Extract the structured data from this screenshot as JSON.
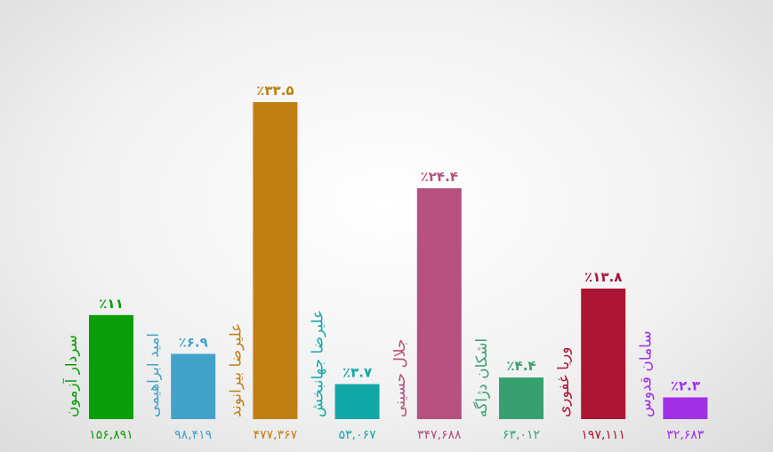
{
  "chart_data": {
    "type": "bar",
    "categories": [
      "سردار آزمون",
      "امید ابراهیمی",
      "علیرضا بیرانوند",
      "علیرضا جهانبخش",
      "جلال حسینی",
      "اشکان دژاگه",
      "وریا غفوری",
      "سامان قدوس"
    ],
    "values": [
      11,
      6.9,
      33.5,
      3.7,
      24.4,
      4.4,
      13.8,
      2.3
    ],
    "value_labels": [
      "٪۱۱",
      "٪۶.۹",
      "٪۳۳.۵",
      "٪۳.۷",
      "٪۲۴.۴",
      "٪۴.۴",
      "٪۱۳.۸",
      "٪۲.۳"
    ],
    "votes": [
      156891,
      98419,
      477367,
      53067,
      347688,
      63012,
      197111,
      32683
    ],
    "vote_labels": [
      "۱۵۶,۸۹۱",
      "۹۸,۴۱۹",
      "۴۷۷,۳۶۷",
      "۵۳,۰۶۷",
      "۳۴۷,۶۸۸",
      "۶۳,۰۱۲",
      "۱۹۷,۱۱۱",
      "۳۲,۶۸۳"
    ],
    "colors": [
      "#0a9e08",
      "#42a3c9",
      "#c07f12",
      "#12a8a8",
      "#b5507f",
      "#38a070",
      "#ad1537",
      "#a12fe6"
    ]
  }
}
